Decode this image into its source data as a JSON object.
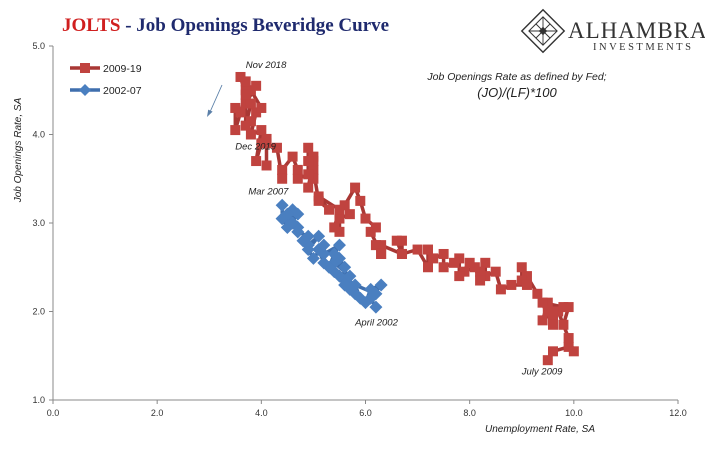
{
  "header": {
    "title_prefix": "JOLTS",
    "title_rest": " - Job Openings Beveridge Curve"
  },
  "brand": {
    "name": "ALHAMBRA",
    "sub": "INVESTMENTS"
  },
  "colors": {
    "series_2009": "#c0433f",
    "series_2009_line": "#a93734",
    "series_2002": "#4a7fc0",
    "series_2002_line": "#3f6fad",
    "axis": "#888888"
  },
  "chart_data": {
    "type": "line",
    "xlabel": "Unemployment Rate, SA",
    "ylabel": "Job Openings Rate, SA",
    "xlim": [
      0,
      12
    ],
    "ylim": [
      1.0,
      5.0
    ],
    "x_ticks": [
      "0.0",
      "2.0",
      "4.0",
      "6.0",
      "8.0",
      "10.0",
      "12.0"
    ],
    "y_ticks": [
      "1.0",
      "2.0",
      "3.0",
      "4.0",
      "5.0"
    ],
    "legend_position": "top-left",
    "note_line1": "Job Openings Rate as defined by Fed;",
    "note_line2": "(JO)/(LF)*100",
    "annotations": [
      {
        "text": "Nov 2018",
        "x": 3.7,
        "y": 4.75
      },
      {
        "text": "Dec 2019",
        "x": 3.5,
        "y": 3.83
      },
      {
        "text": "Mar 2007",
        "x": 3.75,
        "y": 3.32
      },
      {
        "text": "April 2002",
        "x": 5.8,
        "y": 1.84
      },
      {
        "text": "July 2009",
        "x": 9.0,
        "y": 1.29
      }
    ],
    "series": [
      {
        "name": "2009-19",
        "x": [
          9.5,
          9.6,
          9.9,
          10.0,
          9.9,
          9.7,
          9.8,
          9.9,
          9.6,
          9.5,
          9.4,
          9.6,
          9.8,
          9.4,
          9.5,
          9.6,
          9.3,
          9.1,
          9.0,
          9.0,
          9.1,
          8.8,
          8.6,
          8.5,
          8.3,
          8.3,
          8.2,
          8.2,
          8.1,
          7.9,
          8.0,
          7.8,
          7.8,
          7.7,
          7.5,
          7.5,
          7.3,
          7.2,
          7.2,
          7.0,
          6.7,
          6.7,
          6.6,
          6.7,
          6.3,
          6.3,
          6.2,
          6.3,
          6.1,
          6.2,
          6.0,
          5.9,
          5.8,
          5.6,
          5.7,
          5.5,
          5.5,
          5.4,
          5.5,
          5.1,
          5.3,
          5.1,
          5.0,
          5.0,
          4.9,
          5.0,
          5.0,
          4.9,
          4.9,
          4.9,
          4.7,
          4.7,
          4.6,
          4.4,
          4.4,
          4.3,
          4.1,
          4.1,
          4.1,
          4.0,
          3.9,
          4.0,
          3.8,
          3.9,
          3.8,
          4.0,
          3.8,
          3.7,
          3.9,
          3.7,
          3.8,
          3.7,
          3.7,
          3.6,
          3.7,
          3.6,
          3.5,
          3.5
        ],
        "y": [
          1.45,
          1.55,
          1.6,
          1.55,
          1.7,
          2.0,
          1.85,
          2.05,
          1.95,
          2.1,
          1.9,
          2.0,
          2.05,
          2.1,
          2.0,
          1.85,
          2.2,
          2.4,
          2.35,
          2.5,
          2.3,
          2.3,
          2.25,
          2.45,
          2.4,
          2.55,
          2.45,
          2.35,
          2.5,
          2.45,
          2.55,
          2.4,
          2.6,
          2.55,
          2.5,
          2.65,
          2.6,
          2.7,
          2.5,
          2.7,
          2.65,
          2.8,
          2.8,
          2.65,
          2.75,
          2.65,
          2.75,
          2.65,
          2.9,
          2.95,
          3.05,
          3.25,
          3.4,
          3.2,
          3.1,
          3.05,
          2.9,
          2.95,
          3.15,
          3.3,
          3.15,
          3.25,
          3.6,
          3.7,
          3.4,
          3.5,
          3.75,
          3.7,
          3.85,
          3.55,
          3.5,
          3.6,
          3.75,
          3.6,
          3.5,
          3.85,
          3.9,
          3.65,
          3.95,
          3.9,
          3.7,
          4.05,
          4.0,
          4.25,
          4.15,
          4.3,
          4.5,
          4.35,
          4.55,
          4.5,
          4.35,
          4.1,
          4.6,
          4.65,
          4.45,
          4.25,
          4.05,
          4.3
        ]
      },
      {
        "name": "2002-07",
        "x": [
          6.2,
          6.1,
          6.3,
          6.1,
          6.0,
          6.2,
          5.8,
          5.9,
          5.7,
          5.8,
          5.6,
          5.7,
          5.5,
          5.6,
          5.4,
          5.7,
          5.4,
          5.6,
          5.5,
          5.3,
          5.4,
          5.5,
          5.2,
          5.2,
          5.1,
          5.2,
          5.0,
          4.9,
          5.1,
          4.9,
          4.8,
          4.9,
          4.7,
          4.7,
          4.6,
          4.5,
          4.7,
          4.5,
          4.6,
          4.4,
          4.5,
          4.6,
          4.5,
          4.4,
          4.4
        ],
        "y": [
          2.05,
          2.15,
          2.3,
          2.25,
          2.1,
          2.2,
          2.3,
          2.15,
          2.3,
          2.2,
          2.35,
          2.25,
          2.4,
          2.3,
          2.45,
          2.4,
          2.55,
          2.5,
          2.6,
          2.5,
          2.65,
          2.75,
          2.65,
          2.55,
          2.7,
          2.75,
          2.6,
          2.7,
          2.85,
          2.75,
          2.8,
          2.85,
          2.9,
          2.95,
          3.0,
          2.95,
          3.1,
          3.05,
          3.15,
          3.05,
          3.1,
          3.0,
          2.95,
          3.05,
          3.2
        ]
      }
    ]
  }
}
